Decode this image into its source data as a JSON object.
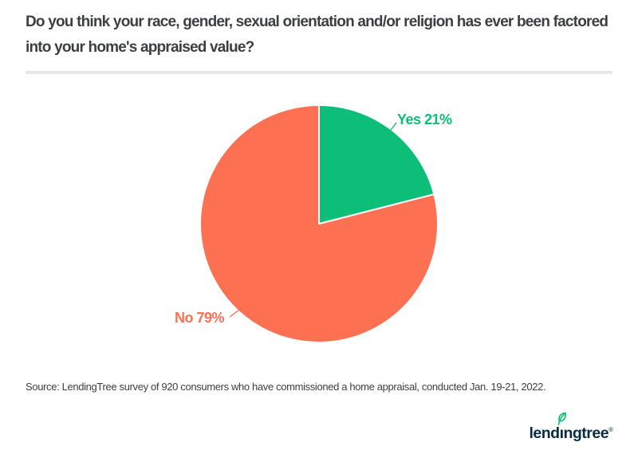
{
  "header": {
    "title": "Do you think your race, gender, sexual orientation and/or religion has ever been factored into your home's appraised value?"
  },
  "chart_data": {
    "type": "pie",
    "title": "Do you think your race, gender, sexual orientation and/or religion has ever been factored into your home's appraised value?",
    "categories": [
      "Yes",
      "No"
    ],
    "values": [
      21,
      79
    ],
    "slices": [
      {
        "label": "Yes",
        "value": 21,
        "display": "Yes 21%",
        "color": "#0cbe77"
      },
      {
        "label": "No",
        "value": 79,
        "display": "No 79%",
        "color": "#fd7152"
      }
    ],
    "unit": "%",
    "start_angle_deg": 0,
    "direction": "clockwise",
    "legend": "none",
    "label_style": "outside-callout"
  },
  "footer": {
    "source": "Source: LendingTree survey of 920 consumers who have commissioned a home appraisal, conducted Jan. 19-21, 2022.",
    "logo": {
      "prefix": "lend",
      "dotless_i": "ı",
      "suffix": "ngtree",
      "trademark": "®"
    }
  },
  "colors": {
    "yes-green": "#0cbe77",
    "no-orange": "#fd7152",
    "title-text": "#3d3e40",
    "divider": "#e7e7e7",
    "logo-navy": "#072b41",
    "leaf-green": "#02bf6e"
  }
}
